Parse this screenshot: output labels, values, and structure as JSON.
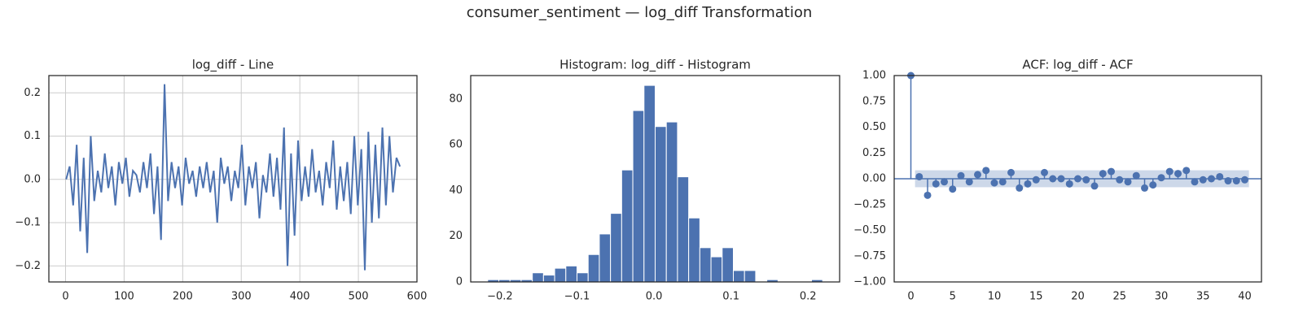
{
  "title": "consumer_sentiment — log_diff Transformation",
  "chart_data": [
    {
      "type": "line",
      "title": "log_diff - Line",
      "color": "#4c72b0",
      "grid": true,
      "x": [
        1,
        7,
        13,
        19,
        25,
        31,
        37,
        43,
        49,
        55,
        61,
        67,
        73,
        79,
        85,
        91,
        97,
        103,
        109,
        115,
        121,
        127,
        133,
        139,
        145,
        151,
        157,
        163,
        169,
        175,
        181,
        187,
        193,
        199,
        205,
        211,
        217,
        223,
        229,
        235,
        241,
        247,
        253,
        259,
        265,
        271,
        277,
        283,
        289,
        295,
        301,
        307,
        313,
        319,
        325,
        331,
        337,
        343,
        349,
        355,
        361,
        367,
        373,
        379,
        385,
        391,
        397,
        403,
        409,
        415,
        421,
        427,
        433,
        439,
        445,
        451,
        457,
        463,
        469,
        475,
        481,
        487,
        493,
        499,
        505,
        511,
        517,
        523,
        529,
        535,
        541,
        547,
        553,
        559,
        565,
        571
      ],
      "values": [
        0.0,
        0.03,
        -0.06,
        0.08,
        -0.12,
        0.05,
        -0.17,
        0.1,
        -0.05,
        0.02,
        -0.03,
        0.06,
        -0.02,
        0.03,
        -0.06,
        0.04,
        -0.01,
        0.05,
        -0.04,
        0.02,
        0.01,
        -0.03,
        0.04,
        -0.02,
        0.06,
        -0.08,
        0.03,
        -0.14,
        0.22,
        -0.05,
        0.04,
        -0.02,
        0.03,
        -0.06,
        0.05,
        -0.01,
        0.02,
        -0.04,
        0.03,
        -0.02,
        0.04,
        -0.03,
        0.02,
        -0.1,
        0.05,
        -0.01,
        0.03,
        -0.05,
        0.02,
        -0.02,
        0.08,
        -0.06,
        0.03,
        -0.02,
        0.04,
        -0.09,
        0.01,
        -0.03,
        0.06,
        -0.04,
        0.05,
        -0.07,
        0.12,
        -0.2,
        0.06,
        -0.13,
        0.09,
        -0.05,
        0.03,
        -0.04,
        0.07,
        -0.03,
        0.02,
        -0.06,
        0.04,
        -0.02,
        0.09,
        -0.07,
        0.03,
        -0.05,
        0.04,
        -0.08,
        0.1,
        -0.06,
        0.07,
        -0.21,
        0.11,
        -0.1,
        0.08,
        -0.09,
        0.12,
        -0.06,
        0.1,
        -0.03,
        0.05,
        0.03
      ],
      "xlim": [
        -28.5,
        600
      ],
      "xticks": [
        0,
        100,
        200,
        300,
        400,
        500,
        600
      ],
      "ylim": [
        -0.237,
        0.24
      ],
      "yticks": [
        {
          "value": -0.2,
          "label": "−0.2"
        },
        {
          "value": -0.1,
          "label": "−0.1"
        },
        {
          "value": 0,
          "label": "0.0"
        },
        0.1,
        0.2
      ]
    },
    {
      "type": "histogram",
      "title": "Histogram: log_diff - Histogram",
      "color": "#4c72b0",
      "grid": false,
      "bins": [
        -0.216,
        -0.2015,
        -0.187,
        -0.1725,
        -0.158,
        -0.1435,
        -0.129,
        -0.1145,
        -0.1,
        -0.0855,
        -0.071,
        -0.0565,
        -0.042,
        -0.0275,
        -0.013,
        0.0015,
        0.016,
        0.0305,
        0.045,
        0.0595,
        0.074,
        0.0885,
        0.103,
        0.1175,
        0.132,
        0.1465,
        0.161,
        0.1755,
        0.19,
        0.2045,
        0.219
      ],
      "values": [
        1,
        1,
        1,
        1,
        4,
        3,
        6,
        7,
        4,
        12,
        21,
        30,
        49,
        75,
        86,
        68,
        70,
        46,
        28,
        15,
        11,
        15,
        5,
        5,
        0,
        1,
        0,
        0,
        0,
        1
      ],
      "xlim": [
        -0.238,
        0.241
      ],
      "xticks": [
        {
          "value": -0.2,
          "label": "−0.2"
        },
        {
          "value": -0.1,
          "label": "−0.1"
        },
        {
          "value": 0,
          "label": "0.0"
        },
        0.1,
        0.2
      ],
      "ylim": [
        0,
        90.3
      ],
      "yticks": [
        0,
        20,
        40,
        60,
        80
      ]
    },
    {
      "type": "acf",
      "title": "ACF: log_diff - ACF",
      "color": "#4c72b0",
      "grid": false,
      "confint": 0.082,
      "values": [
        1,
        0.02,
        -0.16,
        -0.05,
        -0.03,
        -0.1,
        0.03,
        -0.03,
        0.04,
        0.08,
        -0.04,
        -0.03,
        0.06,
        -0.09,
        -0.05,
        -0.01,
        0.06,
        0.0,
        0.0,
        -0.05,
        0.0,
        -0.01,
        -0.07,
        0.05,
        0.07,
        -0.01,
        -0.03,
        0.03,
        -0.09,
        -0.06,
        0.01,
        0.07,
        0.05,
        0.08,
        -0.03,
        -0.01,
        0.0,
        0.02,
        -0.02,
        -0.02,
        -0.01
      ],
      "xlim": [
        -2,
        42
      ],
      "xticks": [
        0,
        5,
        10,
        15,
        20,
        25,
        30,
        35,
        40
      ],
      "ylim": [
        -1,
        1
      ],
      "yticks": [
        {
          "value": -1,
          "label": "−1.00"
        },
        {
          "value": -0.75,
          "label": "−0.75"
        },
        {
          "value": -0.5,
          "label": "−0.50"
        },
        {
          "value": -0.25,
          "label": "−0.25"
        },
        {
          "value": 0,
          "label": "0.00"
        },
        {
          "value": 0.25,
          "label": "0.25"
        },
        {
          "value": 0.5,
          "label": "0.50"
        },
        {
          "value": 0.75,
          "label": "0.75"
        },
        {
          "value": 1,
          "label": "1.00"
        }
      ]
    }
  ]
}
